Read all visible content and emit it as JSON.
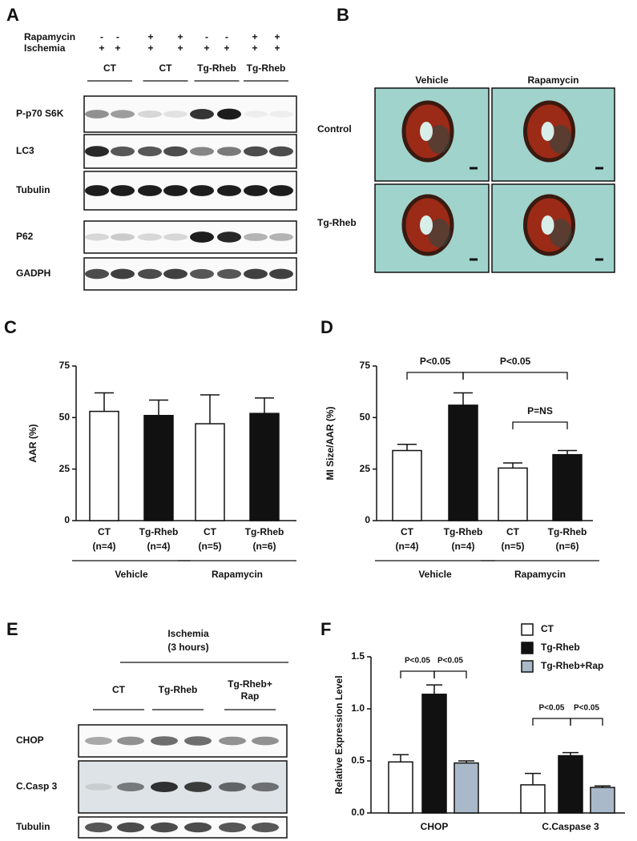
{
  "panels": {
    "a": {
      "letter": "A",
      "conditions": [
        {
          "label": "Rapamycin",
          "signs": [
            "-",
            "-",
            "+",
            "+",
            "-",
            "-",
            "+",
            "+"
          ]
        },
        {
          "label": "Ischemia",
          "signs": [
            "+",
            "+",
            "+",
            "+",
            "+",
            "+",
            "+",
            "+"
          ]
        }
      ],
      "groups": [
        "CT",
        "CT",
        "Tg-Rheb",
        "Tg-Rheb"
      ],
      "blots": [
        "P-p70 S6K",
        "LC3",
        "Tubulin",
        "P62",
        "GADPH"
      ]
    },
    "b": {
      "letter": "B",
      "columns": [
        "Vehicle",
        "Rapamycin"
      ],
      "rows": [
        "Control",
        "Tg-Rheb"
      ]
    },
    "e": {
      "letter": "E",
      "treatment": [
        "Ischemia",
        "(3 hours)"
      ],
      "groups": [
        [
          "CT"
        ],
        [
          "Tg-Rheb"
        ],
        [
          "Tg-Rheb+",
          "Rap"
        ]
      ],
      "blots": [
        "CHOP",
        "C.Casp 3",
        "Tubulin"
      ]
    }
  },
  "chart_data": [
    {
      "type": "bar",
      "letter": "C",
      "ylabel": "AAR (%)",
      "categories": [
        "CT",
        "Tg-Rheb",
        "CT",
        "Tg-Rheb"
      ],
      "n_labels": [
        "(n=4)",
        "(n=4)",
        "(n=5)",
        "(n=6)"
      ],
      "groups": [
        "Vehicle",
        "Rapamycin"
      ],
      "values": [
        53,
        51,
        47,
        52
      ],
      "errors": [
        9,
        7.5,
        14,
        7.5
      ],
      "colors": [
        "#ffffff",
        "#111111",
        "#ffffff",
        "#111111"
      ],
      "ylim": [
        0,
        75
      ],
      "yticks": [
        0,
        25,
        50,
        75
      ]
    },
    {
      "type": "bar",
      "letter": "D",
      "ylabel": "MI Size/AAR (%)",
      "categories": [
        "CT",
        "Tg-Rheb",
        "CT",
        "Tg-Rheb"
      ],
      "n_labels": [
        "(n=4)",
        "(n=4)",
        "(n=5)",
        "(n=6)"
      ],
      "groups": [
        "Vehicle",
        "Rapamycin"
      ],
      "values": [
        34,
        56,
        25.5,
        32
      ],
      "errors": [
        3,
        6,
        2.5,
        2
      ],
      "colors": [
        "#ffffff",
        "#111111",
        "#ffffff",
        "#111111"
      ],
      "ylim": [
        0,
        75
      ],
      "yticks": [
        0,
        25,
        50,
        75
      ],
      "annotations": [
        "P<0.05",
        "P<0.05",
        "P=NS"
      ]
    },
    {
      "type": "grouped_bar",
      "letter": "F",
      "ylabel": "Relative Expression Level",
      "categories": [
        "CHOP",
        "C.Caspase 3"
      ],
      "series": [
        {
          "name": "CT",
          "color": "#ffffff",
          "values": [
            0.49,
            0.27
          ],
          "errors": [
            0.07,
            0.11
          ]
        },
        {
          "name": "Tg-Rheb",
          "color": "#111111",
          "values": [
            1.14,
            0.55
          ],
          "errors": [
            0.09,
            0.03
          ]
        },
        {
          "name": "Tg-Rheb+Rap",
          "color": "#a9b9c9",
          "values": [
            0.48,
            0.245
          ],
          "errors": [
            0.02,
            0.015
          ]
        }
      ],
      "ylim": [
        0,
        1.5
      ],
      "yticks": [
        {
          "value": 0,
          "label": "0.0"
        },
        {
          "value": 0.5,
          "label": "0.5"
        },
        {
          "value": 1,
          "label": "1.0"
        },
        {
          "value": 1.5,
          "label": "1.5"
        }
      ],
      "annotations": [
        "P<0.05",
        "P<0.05",
        "P<0.05",
        "P<0.05"
      ]
    }
  ]
}
